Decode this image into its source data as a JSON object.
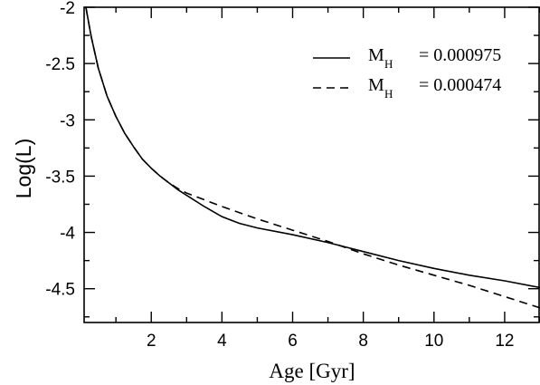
{
  "chart_data": {
    "type": "line",
    "xlabel": "Age [Gyr]",
    "ylabel": "Log(L)",
    "xlim": [
      0.1,
      13
    ],
    "ylim": [
      -4.8,
      -2
    ],
    "xticks": [
      2,
      4,
      6,
      8,
      10,
      12
    ],
    "yticks": [
      -2,
      -2.5,
      -3,
      -3.5,
      -4,
      -4.5
    ],
    "ytick_labels": [
      "-2",
      "-2.5",
      "-3",
      "-3.5",
      "-4",
      "-4.5"
    ],
    "grid": false,
    "legend_position": "top-right",
    "series": [
      {
        "name_main": "M",
        "name_sub": "H",
        "name_value": "= 0.000975",
        "style": "solid",
        "x": [
          0.15,
          0.3,
          0.5,
          0.75,
          1.0,
          1.25,
          1.5,
          1.75,
          2.0,
          2.25,
          2.5,
          2.75,
          3.0,
          3.5,
          4.0,
          4.5,
          5.0,
          6.0,
          7.0,
          8.0,
          9.0,
          10.0,
          11.0,
          12.0,
          13.0
        ],
        "y": [
          -2.0,
          -2.26,
          -2.54,
          -2.79,
          -2.97,
          -3.12,
          -3.24,
          -3.35,
          -3.43,
          -3.5,
          -3.56,
          -3.62,
          -3.67,
          -3.77,
          -3.86,
          -3.92,
          -3.96,
          -4.02,
          -4.09,
          -4.17,
          -4.25,
          -4.32,
          -4.38,
          -4.43,
          -4.49
        ]
      },
      {
        "name_main": "M",
        "name_sub": "H",
        "name_value": "= 0.000474",
        "style": "dashed",
        "x": [
          0.15,
          0.3,
          0.5,
          0.75,
          1.0,
          1.25,
          1.5,
          1.75,
          2.0,
          2.25,
          2.5,
          2.75,
          3.0,
          4.0,
          5.0,
          6.0,
          7.0,
          8.0,
          9.0,
          10.0,
          11.0,
          12.0,
          13.0
        ],
        "y": [
          -2.0,
          -2.26,
          -2.54,
          -2.79,
          -2.97,
          -3.12,
          -3.24,
          -3.35,
          -3.43,
          -3.5,
          -3.56,
          -3.61,
          -3.65,
          -3.77,
          -3.88,
          -3.98,
          -4.08,
          -4.19,
          -4.29,
          -4.38,
          -4.47,
          -4.57,
          -4.67
        ]
      }
    ]
  }
}
